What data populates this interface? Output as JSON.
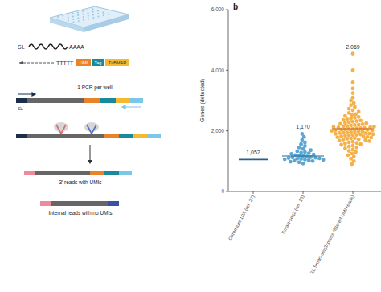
{
  "panel_label": "b",
  "diagram": {
    "sl_label": "SL",
    "polya": "AAAA",
    "oligo_dt": "TTTTT",
    "umi": "UMI",
    "tag": "Tag",
    "tn": "TnBMAR",
    "pcr": "1 PCR per well",
    "construct_sl": "SL",
    "reads_umi": "3′ reads with UMIs",
    "reads_internal": "Internal reads with no UMIs"
  },
  "chart_data": {
    "type": "strip",
    "y_label": "Genes (detected)",
    "categories": [
      "Chromium 10X (ref. 27)",
      "Smart-seq2 (ref. 13)",
      "SL Smart-seq3xpress (filtered UMI reads)"
    ],
    "colors": [
      "#2b5f8a",
      "#3f97c9",
      "#f2a32a"
    ],
    "medians": [
      1052,
      1170,
      2069
    ],
    "value_labels": [
      "1,052",
      "1,170",
      "2,069"
    ],
    "points": [
      [],
      [
        920,
        960,
        980,
        1000,
        1010,
        1030,
        1040,
        1050,
        1060,
        1070,
        1080,
        1090,
        1100,
        1110,
        1120,
        1130,
        1150,
        1170,
        1180,
        1200,
        1220,
        1240,
        1260,
        1280,
        1300,
        1330,
        1360,
        1400,
        1450,
        1500,
        1560,
        1620,
        1700,
        1800,
        1900
      ],
      [
        900,
        1000,
        1080,
        1150,
        1200,
        1250,
        1300,
        1340,
        1380,
        1420,
        1450,
        1480,
        1510,
        1540,
        1560,
        1580,
        1600,
        1620,
        1640,
        1660,
        1680,
        1700,
        1710,
        1720,
        1740,
        1750,
        1760,
        1780,
        1790,
        1800,
        1810,
        1820,
        1840,
        1850,
        1860,
        1870,
        1880,
        1890,
        1900,
        1910,
        1920,
        1930,
        1940,
        1950,
        1960,
        1970,
        1980,
        1990,
        2000,
        2010,
        2020,
        2030,
        2040,
        2050,
        2060,
        2070,
        2080,
        2090,
        2100,
        2110,
        2120,
        2130,
        2140,
        2150,
        2160,
        2180,
        2190,
        2200,
        2220,
        2230,
        2250,
        2260,
        2280,
        2300,
        2320,
        2340,
        2360,
        2380,
        2400,
        2430,
        2460,
        2490,
        2520,
        2550,
        2590,
        2630,
        2680,
        2730,
        2790,
        2850,
        2920,
        3000,
        3100,
        3250,
        3400,
        3600,
        4000,
        4550
      ]
    ],
    "ylim": [
      0,
      6000
    ],
    "yticks": [
      0,
      {
        "value": 2000,
        "label": "2,000"
      },
      {
        "value": 4000,
        "label": "4,000"
      },
      {
        "value": 6000,
        "label": "6,000"
      }
    ],
    "grid": false,
    "data_labels": true
  }
}
